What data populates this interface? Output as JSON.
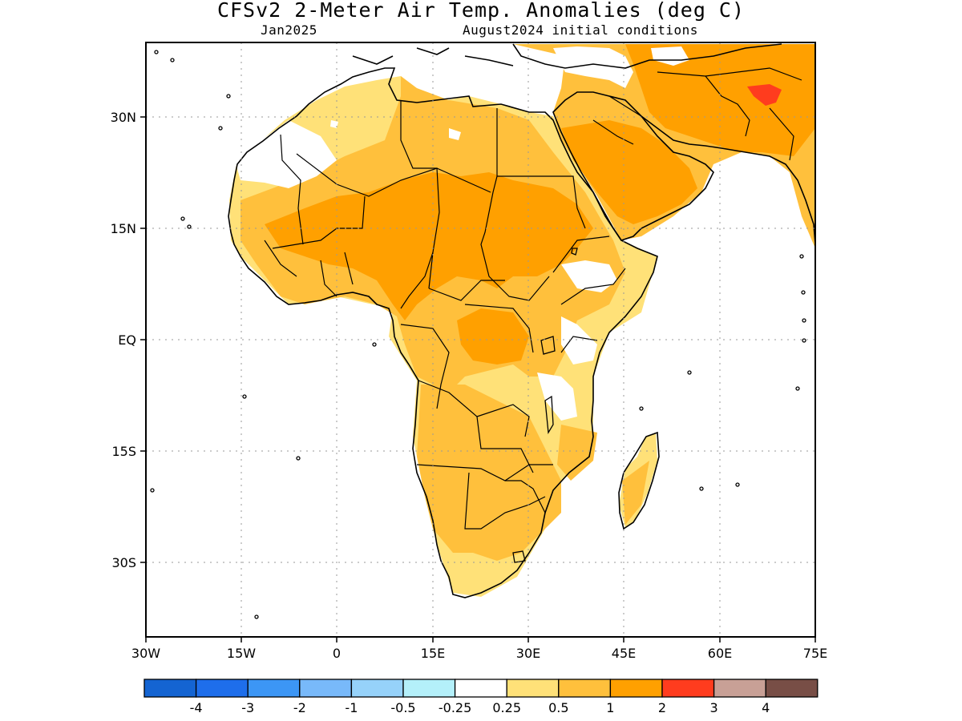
{
  "header": {
    "title": "CFSv2 2-Meter Air Temp. Anomalies (deg C)",
    "valid_month": "Jan2025",
    "init_conditions": "August2024 initial conditions"
  },
  "axes": {
    "lon_labels": [
      "30W",
      "15W",
      "0",
      "15E",
      "30E",
      "45E",
      "60E",
      "75E"
    ],
    "lat_labels": [
      "30N",
      "15N",
      "EQ",
      "15S",
      "30S"
    ]
  },
  "legend": {
    "colors": [
      "#1464d2",
      "#1e6eeb",
      "#3c96f5",
      "#78b9fa",
      "#96d2fa",
      "#b4f0fa",
      "#ffffff",
      "#ffe178",
      "#ffc03c",
      "#ffa000",
      "#ff3c1e",
      "#c8a096",
      "#784e46"
    ],
    "labels": [
      "-4",
      "-3",
      "-2",
      "-1",
      "-0.5",
      "-0.25",
      "0.25",
      "0.5",
      "1",
      "2",
      "3",
      "4"
    ]
  },
  "colors": {
    "anom_0_25_0_5": "#ffe178",
    "anom_0_5_1": "#ffc03c",
    "anom_1_2": "#ffa000",
    "anom_2_3": "#ff3c1e"
  }
}
